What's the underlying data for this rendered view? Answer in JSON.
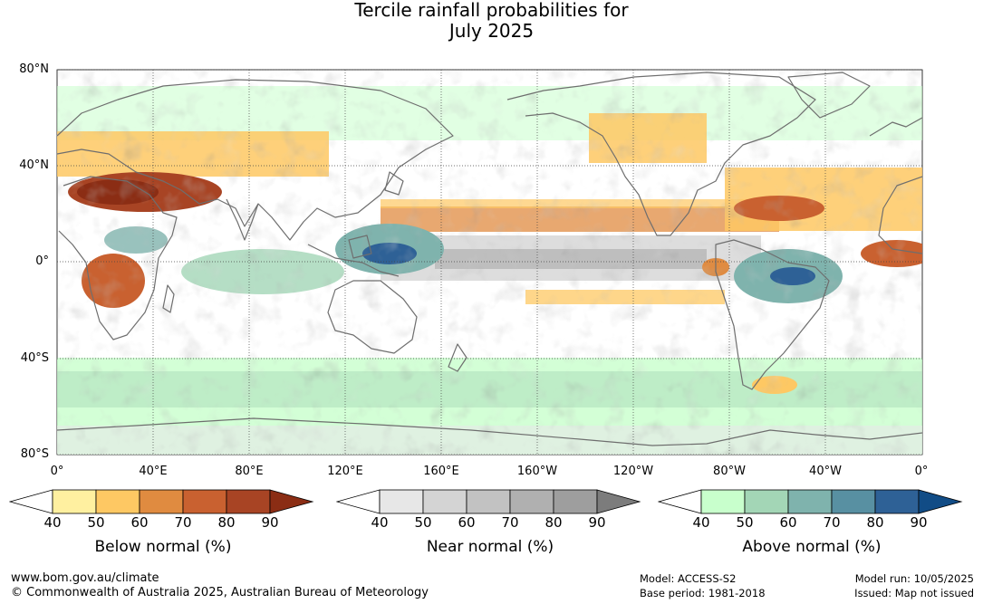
{
  "title": {
    "line1": "Tercile rainfall probabilities for",
    "line2": "July 2025"
  },
  "map": {
    "lat_labels": [
      "80°N",
      "40°N",
      "0°",
      "40°S",
      "80°S"
    ],
    "lon_labels": [
      "0°",
      "40°E",
      "80°E",
      "120°E",
      "160°E",
      "160°W",
      "120°W",
      "80°W",
      "40°W",
      "0°"
    ],
    "colors": {
      "below": [
        "#fff0a0",
        "#fec863",
        "#e08b40",
        "#c96130",
        "#a84424",
        "#8b2d14"
      ],
      "near": [
        "#e7e7e7",
        "#d4d4d4",
        "#c2c2c2",
        "#b0b0b0",
        "#9e9e9e",
        "#7c7c7c"
      ],
      "above": [
        "#c8ffcc",
        "#a3d6b6",
        "#7fb3ad",
        "#5890a2",
        "#2e6196",
        "#114c86"
      ],
      "coast": "#6e6e6e"
    }
  },
  "colorbars": [
    {
      "title": "Below normal (%)",
      "ticks": [
        "40",
        "50",
        "60",
        "70",
        "80",
        "90"
      ],
      "palette": "below"
    },
    {
      "title": "Near normal (%)",
      "ticks": [
        "40",
        "50",
        "60",
        "70",
        "80",
        "90"
      ],
      "palette": "near"
    },
    {
      "title": "Above normal (%)",
      "ticks": [
        "40",
        "50",
        "60",
        "70",
        "80",
        "90"
      ],
      "palette": "above"
    }
  ],
  "footer": {
    "website": "www.bom.gov.au/climate",
    "copyright": "© Commonwealth of Australia 2025, Australian Bureau of Meteorology",
    "model": "Model: ACCESS-S2",
    "base_period": "Base period: 1981-2018",
    "model_run": "Model run: 10/05/2025",
    "issued": "Issued: Map not issued"
  }
}
